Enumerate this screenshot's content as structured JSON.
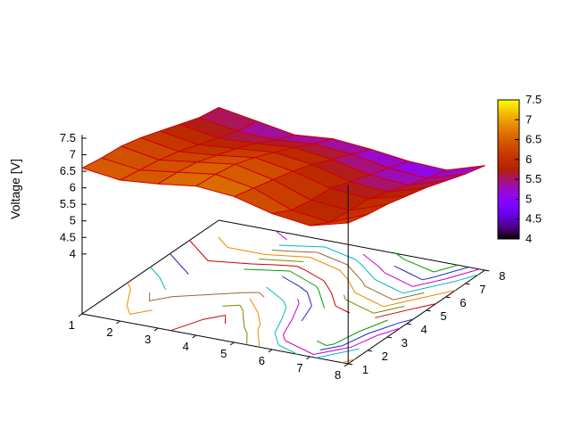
{
  "figure": {
    "background": "#ffffff"
  },
  "chart_data": {
    "type": "surface3d_with_base_contours",
    "title": "",
    "zlabel": "Voltage [V]",
    "x": [
      1,
      2,
      3,
      4,
      5,
      6,
      7,
      8
    ],
    "y": [
      1,
      2,
      3,
      4,
      5,
      6,
      7,
      8
    ],
    "z_rows_y1_to_y8": [
      [
        6.6,
        6.45,
        6.55,
        6.7,
        6.6,
        6.3,
        6.15,
        6.45
      ],
      [
        6.5,
        6.35,
        6.5,
        6.65,
        6.45,
        6.0,
        5.85,
        6.3
      ],
      [
        6.45,
        6.25,
        6.4,
        6.55,
        6.3,
        5.9,
        5.8,
        6.2
      ],
      [
        6.3,
        6.1,
        6.2,
        6.35,
        6.15,
        5.85,
        5.75,
        6.05
      ],
      [
        6.1,
        5.9,
        6.0,
        6.1,
        5.95,
        5.65,
        5.55,
        5.9
      ],
      [
        5.9,
        5.7,
        5.75,
        5.85,
        5.7,
        5.45,
        5.35,
        5.7
      ],
      [
        5.7,
        5.5,
        5.45,
        5.55,
        5.45,
        5.25,
        5.15,
        5.5
      ],
      [
        5.6,
        5.4,
        5.2,
        5.3,
        5.2,
        5.05,
        5.0,
        5.35
      ]
    ],
    "xtick_labels": [
      "1",
      "2",
      "3",
      "4",
      "5",
      "6",
      "7",
      "8"
    ],
    "ytick_labels": [
      "1",
      "2",
      "3",
      "4",
      "5",
      "6",
      "7",
      "8"
    ],
    "zticks": {
      "values": [
        4,
        4.5,
        5,
        5.5,
        6,
        6.5,
        7,
        7.5
      ],
      "labels": [
        "4",
        "4.5",
        "5",
        "5.5",
        "6",
        "6.5",
        "7",
        "7.5"
      ]
    },
    "colorbar": {
      "min": 4,
      "max": 7.5,
      "tick_values": [
        4,
        4.5,
        5,
        5.5,
        6,
        6.5,
        7,
        7.5
      ],
      "tick_labels": [
        "4",
        "4.5",
        "5",
        "5.5",
        "6",
        "6.5",
        "7",
        "7.5"
      ]
    },
    "palette_stops": [
      [
        0.0,
        "#000000"
      ],
      [
        0.05,
        "#39004f"
      ],
      [
        0.1,
        "#510096"
      ],
      [
        0.15,
        "#6300ce"
      ],
      [
        0.2,
        "#7202f3"
      ],
      [
        0.25,
        "#8004ff"
      ],
      [
        0.3,
        "#8c07f3"
      ],
      [
        0.35,
        "#970bce"
      ],
      [
        0.4,
        "#a11096"
      ],
      [
        0.45,
        "#ab174f"
      ],
      [
        0.5,
        "#b42000"
      ],
      [
        0.6,
        "#c63700"
      ],
      [
        0.7,
        "#d55700"
      ],
      [
        0.8,
        "#e48300"
      ],
      [
        0.9,
        "#f2ba00"
      ],
      [
        1.0,
        "#ffff00"
      ]
    ],
    "contour_levels": [
      5.0,
      5.1,
      5.2,
      5.3,
      5.4,
      5.5,
      5.6,
      5.7,
      5.8,
      5.9,
      6.0,
      6.1,
      6.2,
      6.3,
      6.4,
      6.5,
      6.6
    ],
    "contour_colors": [
      "#cc0000",
      "#00a000",
      "#2222cc",
      "#cc00cc",
      "#00bbbb",
      "#996633",
      "#ee8800",
      "#778800"
    ],
    "mesh_color": "#cc0000",
    "axis_color": "#000000"
  }
}
